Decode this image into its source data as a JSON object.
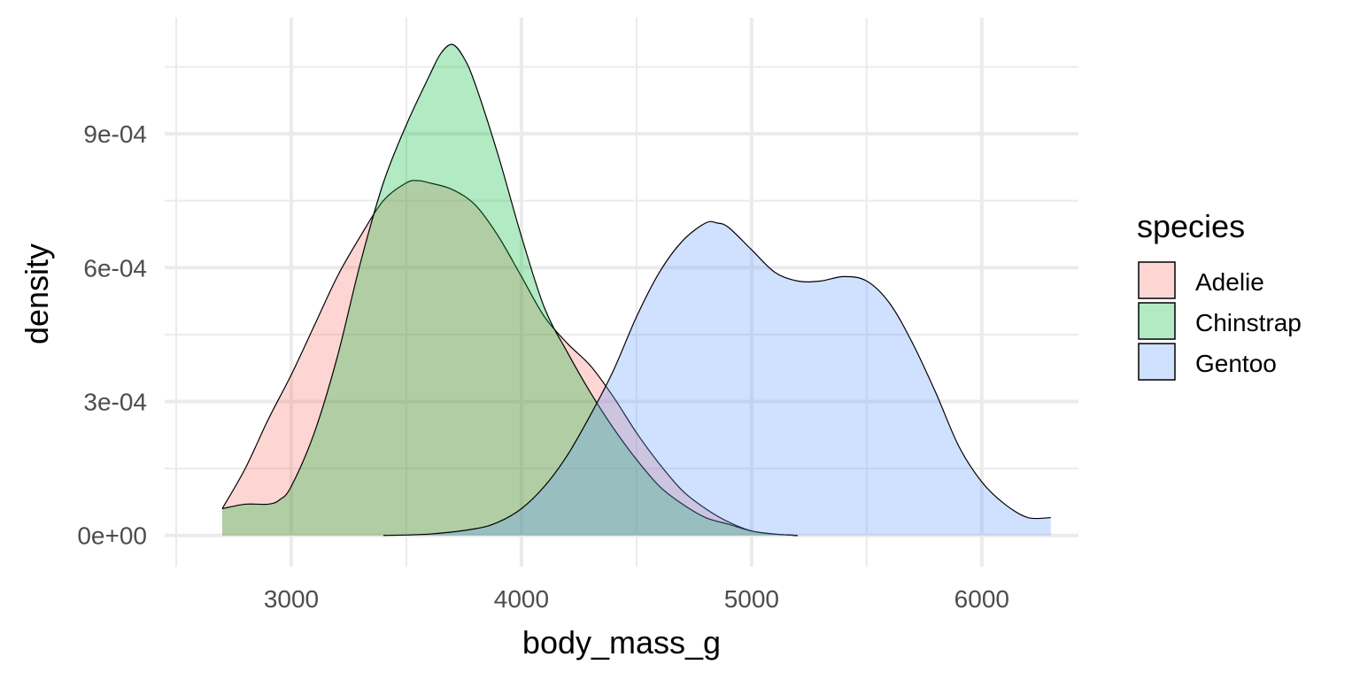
{
  "chart_data": {
    "type": "area",
    "subtype": "density",
    "title": "",
    "xlabel": "body_mass_g",
    "ylabel": "density",
    "xlim": [
      2450,
      6420
    ],
    "ylim": [
      -7e-05,
      0.00116
    ],
    "x_ticks": [
      3000,
      4000,
      5000,
      6000
    ],
    "x_tick_labels": [
      "3000",
      "4000",
      "5000",
      "6000"
    ],
    "y_ticks": [
      0,
      0.0003,
      0.0006,
      0.0009
    ],
    "y_tick_labels": [
      "0e+00",
      "3e-04",
      "6e-04",
      "9e-04"
    ],
    "grid": true,
    "fill_opacity": 0.3,
    "legend": {
      "title": "species",
      "position": "right"
    },
    "series": [
      {
        "name": "Adelie",
        "color": "#F8766D",
        "x": [
          2700,
          2800,
          2900,
          3000,
          3100,
          3200,
          3300,
          3400,
          3500,
          3550,
          3600,
          3700,
          3800,
          3900,
          4000,
          4100,
          4200,
          4300,
          4400,
          4500,
          4600,
          4700,
          4800,
          4900,
          5000,
          5100,
          5200
        ],
        "values": [
          6e-05,
          0.00015,
          0.00026,
          0.00036,
          0.00047,
          0.00058,
          0.00067,
          0.00075,
          0.00079,
          0.000795,
          0.00079,
          0.000775,
          0.00074,
          0.00067,
          0.00058,
          0.00049,
          0.00043,
          0.00038,
          0.00031,
          0.00023,
          0.00016,
          0.0001,
          6e-05,
          3e-05,
          1e-05,
          3e-06,
          0.0
        ]
      },
      {
        "name": "Chinstrap",
        "color": "#00BA38",
        "x": [
          2700,
          2800,
          2900,
          2950,
          3000,
          3100,
          3200,
          3300,
          3400,
          3500,
          3600,
          3650,
          3700,
          3750,
          3800,
          3900,
          4000,
          4100,
          4200,
          4300,
          4400,
          4500,
          4600,
          4700,
          4800,
          4900,
          5000,
          5100,
          5200
        ],
        "values": [
          6e-05,
          7e-05,
          7e-05,
          8e-05,
          0.00011,
          0.00023,
          0.0004,
          0.00061,
          0.00079,
          0.00092,
          0.00103,
          0.00108,
          0.0011,
          0.00107,
          0.00101,
          0.00085,
          0.00067,
          0.00051,
          0.00041,
          0.00032,
          0.00024,
          0.00017,
          0.00011,
          7e-05,
          4e-05,
          2.5e-05,
          1e-05,
          3e-06,
          0.0
        ]
      },
      {
        "name": "Gentoo",
        "color": "#619CFF",
        "x": [
          3400,
          3600,
          3800,
          3900,
          4000,
          4100,
          4200,
          4300,
          4400,
          4500,
          4600,
          4700,
          4800,
          4850,
          4900,
          5000,
          5100,
          5200,
          5300,
          5400,
          5500,
          5600,
          5700,
          5800,
          5900,
          6000,
          6100,
          6200,
          6300
        ],
        "values": [
          0.0,
          3e-06,
          1.5e-05,
          3e-05,
          6e-05,
          0.00011,
          0.00018,
          0.00027,
          0.00037,
          0.00049,
          0.00059,
          0.00066,
          0.0007,
          0.0007,
          0.00069,
          0.00064,
          0.00059,
          0.00057,
          0.00057,
          0.00058,
          0.00057,
          0.00052,
          0.00043,
          0.00032,
          0.0002,
          0.00012,
          7e-05,
          4e-05,
          4e-05
        ]
      }
    ]
  }
}
